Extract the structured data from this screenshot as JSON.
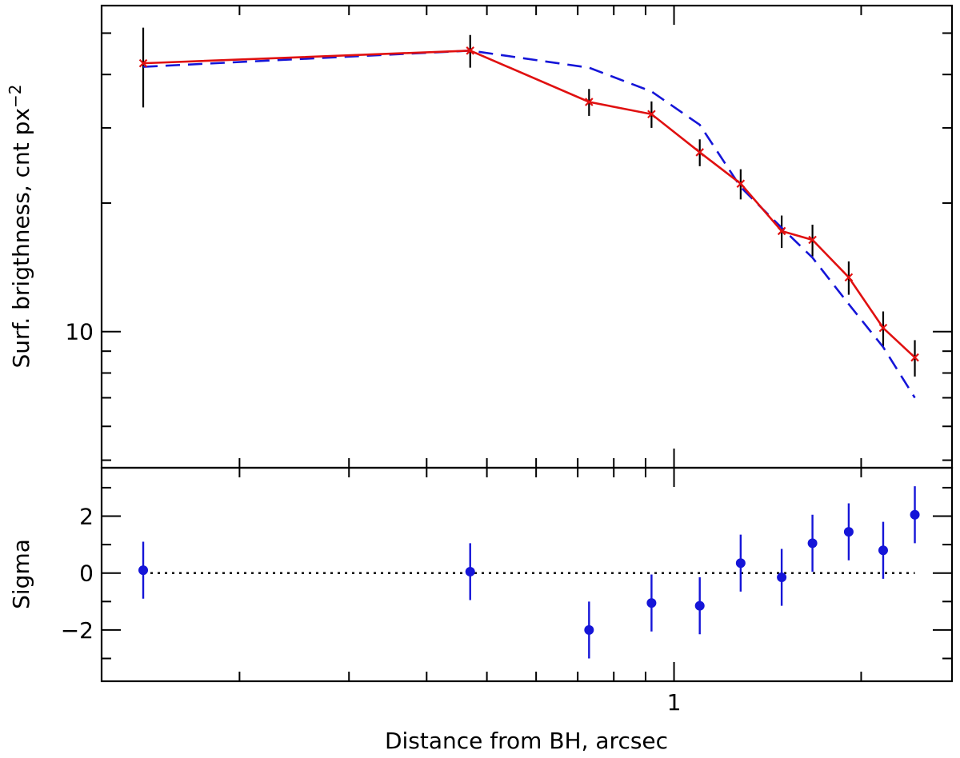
{
  "chart_data": [
    {
      "type": "line",
      "panel": "top",
      "ylabel": "Surf. brigthness, cnt px",
      "ylabel_exponent": "−2",
      "xscale": "log",
      "yscale": "log",
      "xlim": [
        0.12,
        2.8
      ],
      "ylim": [
        4.8,
        58
      ],
      "y_tick_labels": [
        {
          "value": 10,
          "label": "10"
        }
      ],
      "grid": false,
      "series": [
        {
          "color": "#e01010",
          "style": "solid",
          "marker": "x",
          "x": [
            0.14,
            0.47,
            0.73,
            0.92,
            1.1,
            1.28,
            1.49,
            1.67,
            1.91,
            2.17,
            2.44
          ],
          "y": [
            42.5,
            45.5,
            34.5,
            32.3,
            26.3,
            22.2,
            17.2,
            16.4,
            13.4,
            10.2,
            8.7
          ],
          "yerr": [
            [
              9,
              9
            ],
            [
              4,
              4
            ],
            [
              2.5,
              2.5
            ],
            [
              2.3,
              2.3
            ],
            [
              1.9,
              1.9
            ],
            [
              1.8,
              1.8
            ],
            [
              1.5,
              1.5
            ],
            [
              1.4,
              1.4
            ],
            [
              1.2,
              1.2
            ],
            [
              0.95,
              0.95
            ],
            [
              0.85,
              0.85
            ]
          ]
        },
        {
          "color": "#1515d8",
          "style": "dashed",
          "x": [
            0.14,
            0.47,
            0.73,
            0.92,
            1.1,
            1.28,
            1.49,
            1.67,
            1.91,
            2.17,
            2.44
          ],
          "y": [
            41.7,
            45.5,
            41.5,
            36.5,
            30.5,
            21.8,
            17.5,
            14.9,
            11.6,
            9.2,
            7.0
          ]
        }
      ]
    },
    {
      "type": "scatter",
      "panel": "bottom",
      "ylabel": "Sigma",
      "xlabel": "Distance from BH, arcsec",
      "xscale": "log",
      "xlim": [
        0.12,
        2.8
      ],
      "ylim": [
        -3.8,
        3.7
      ],
      "y_tick_labels": [
        {
          "value": -2,
          "label": "−2"
        },
        {
          "value": 0,
          "label": "0"
        },
        {
          "value": 2,
          "label": "2"
        }
      ],
      "x_tick_labels": [
        {
          "value": 1,
          "label": "1"
        }
      ],
      "reference_line": {
        "y": 0,
        "style": "dotted",
        "color": "#000000"
      },
      "grid": false,
      "series": [
        {
          "color": "#1515d8",
          "marker": "circle",
          "x": [
            0.14,
            0.47,
            0.73,
            0.92,
            1.1,
            1.28,
            1.49,
            1.67,
            1.91,
            2.17,
            2.44
          ],
          "y": [
            0.1,
            0.05,
            -2.0,
            -1.05,
            -1.15,
            0.35,
            -0.15,
            1.05,
            1.45,
            0.8,
            2.05
          ],
          "yerr": 1.0
        }
      ]
    }
  ]
}
